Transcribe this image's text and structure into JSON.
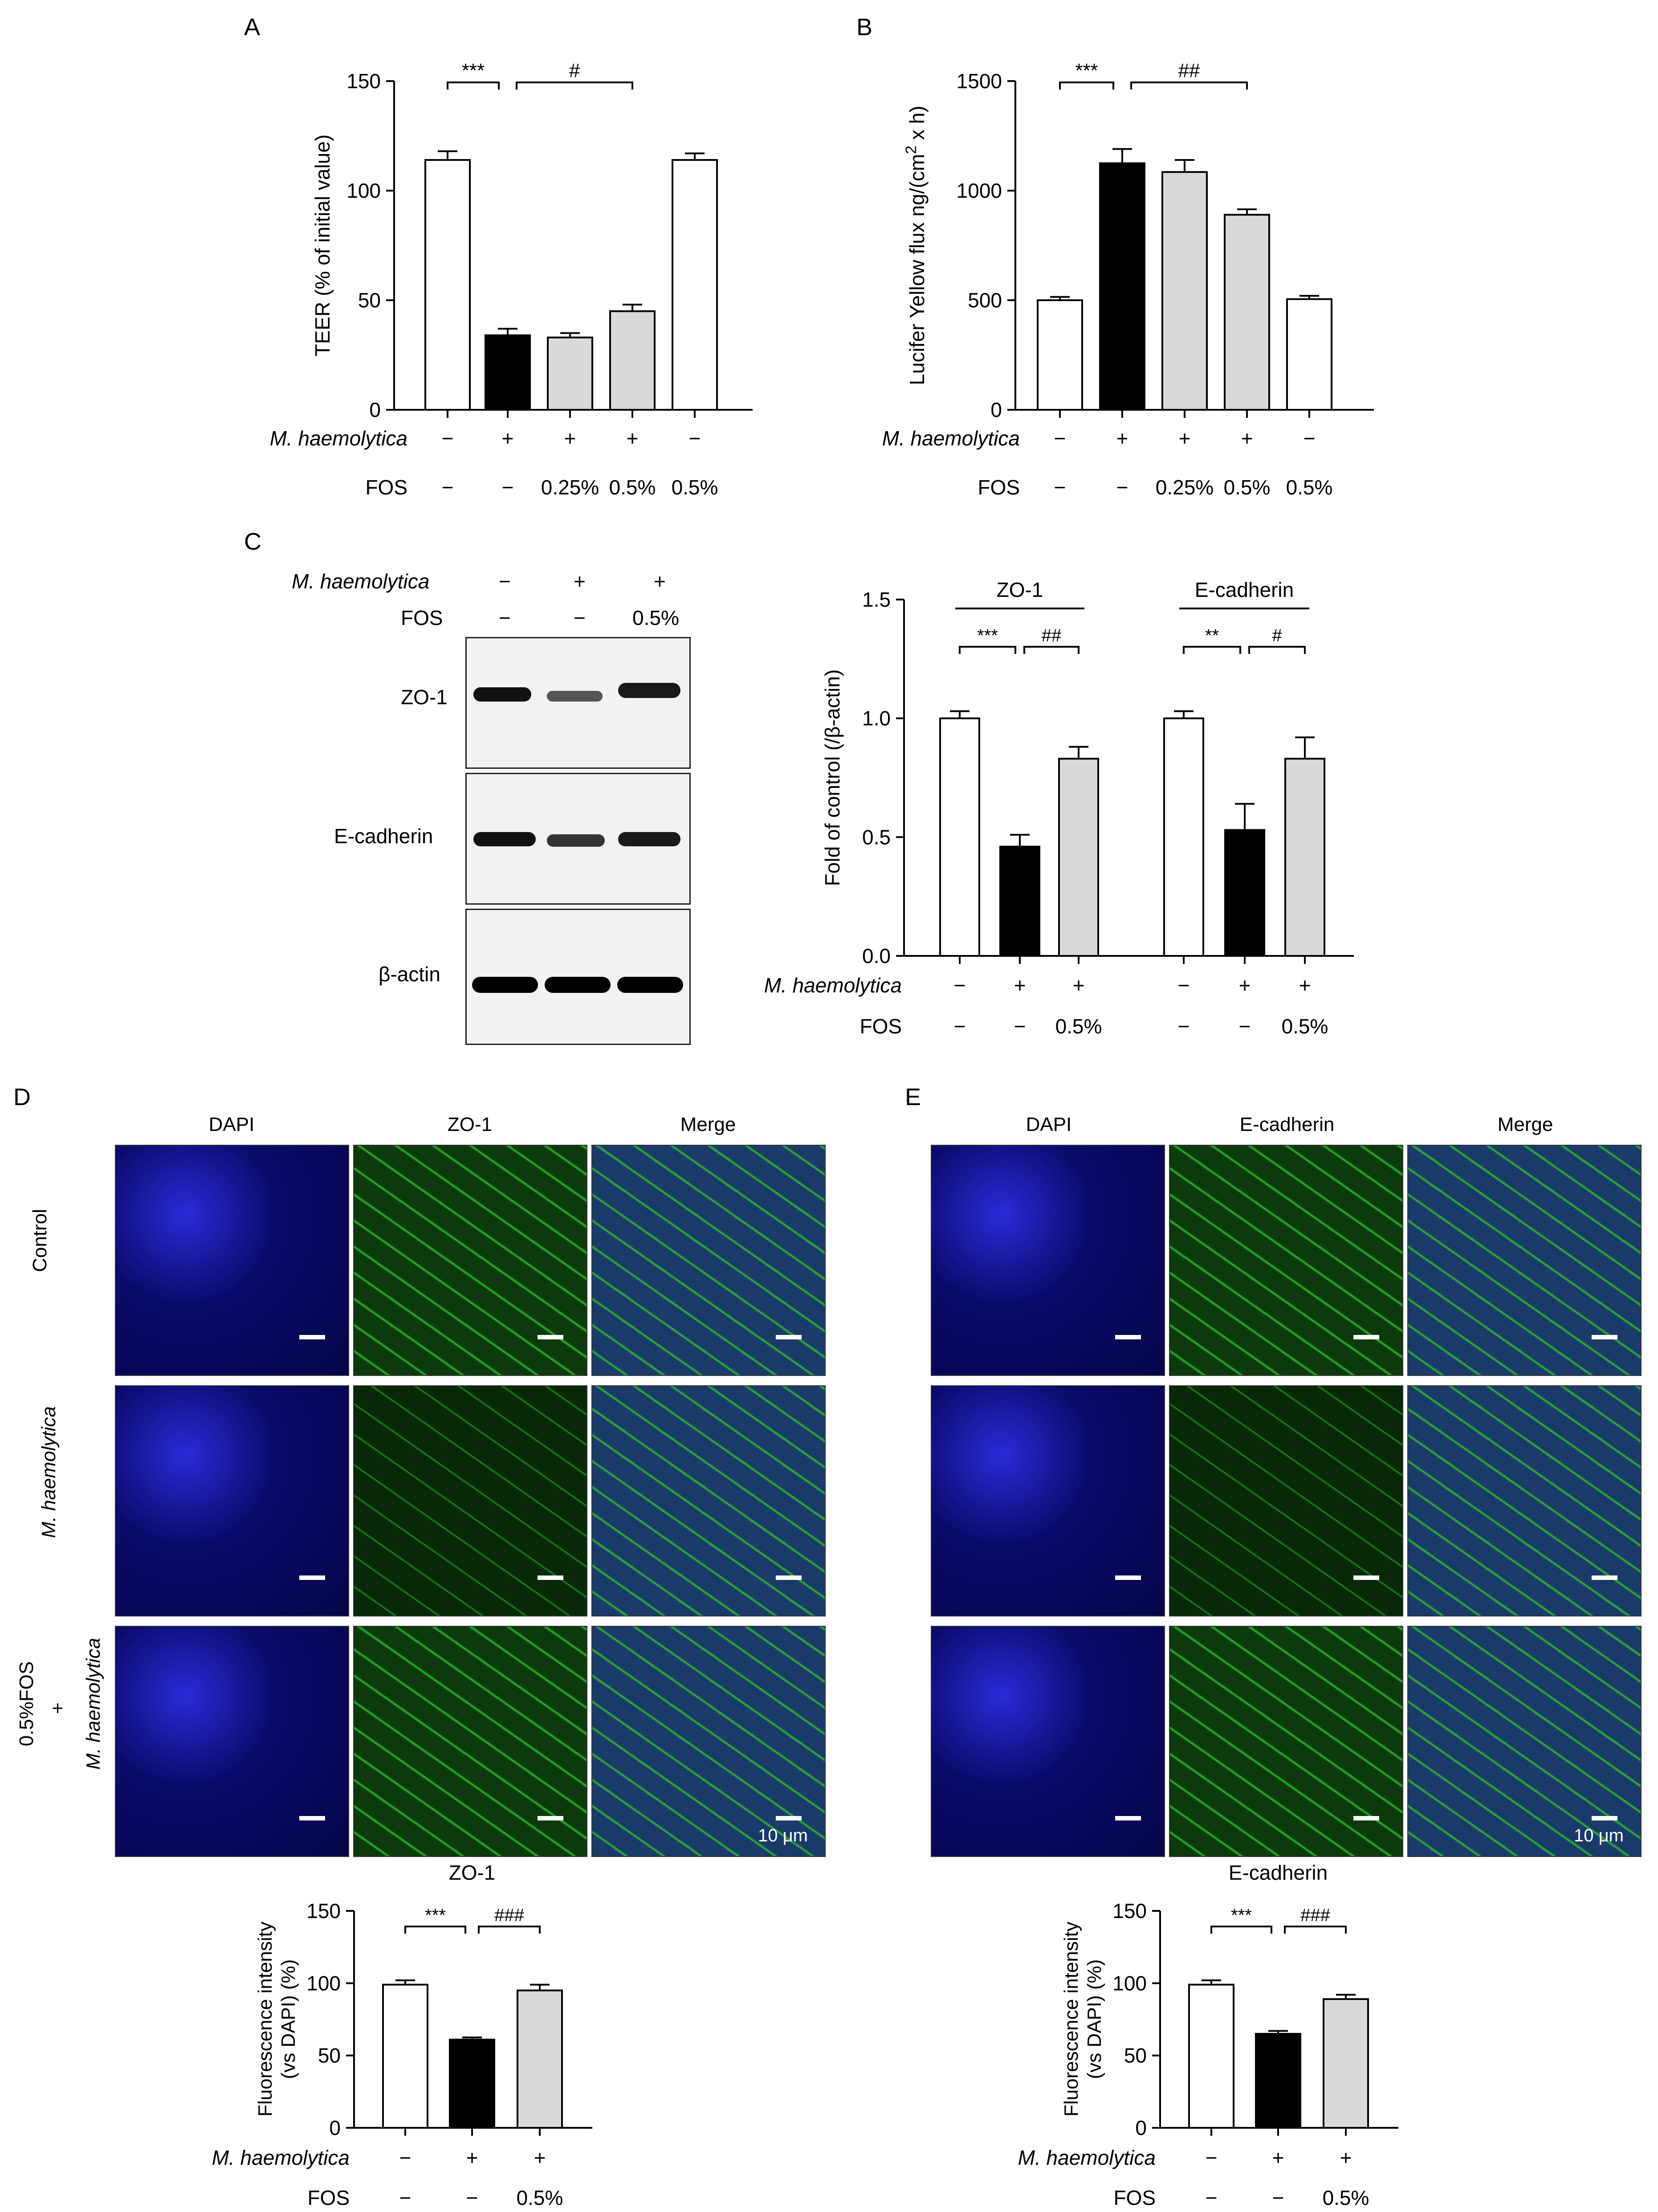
{
  "panels": {
    "a": "A",
    "b": "B",
    "c": "C",
    "d": "D",
    "e": "E"
  },
  "treatment_labels": {
    "m_haemolytica": "M. haemolytica",
    "fos": "FOS",
    "minus": "−",
    "plus": "+"
  },
  "colors": {
    "white_bar": "#ffffff",
    "black_bar": "#000000",
    "grey_bar": "#d9d9d9",
    "dapi": "#1a1aa8",
    "green": "#22b022"
  },
  "chart_data": [
    {
      "id": "A",
      "type": "bar",
      "categories": [
        "1",
        "2",
        "3",
        "4",
        "5"
      ],
      "m_haemolytica": [
        "−",
        "+",
        "+",
        "+",
        "−"
      ],
      "fos": [
        "−",
        "−",
        "0.25%",
        "0.5%",
        "0.5%"
      ],
      "values": [
        114,
        34,
        33,
        45,
        114
      ],
      "errors": [
        4,
        3,
        2,
        3,
        3
      ],
      "fills": [
        "white",
        "black",
        "grey",
        "grey",
        "white"
      ],
      "ylabel": "TEER (%  of initial value)",
      "ylim": [
        0,
        150
      ],
      "yticks": [
        0,
        50,
        100,
        150
      ],
      "brackets": [
        {
          "from": 0,
          "to": 1,
          "text": "***"
        },
        {
          "from": 1,
          "to": 3,
          "text": "#"
        }
      ]
    },
    {
      "id": "B",
      "type": "bar",
      "categories": [
        "1",
        "2",
        "3",
        "4",
        "5"
      ],
      "m_haemolytica": [
        "−",
        "+",
        "+",
        "+",
        "−"
      ],
      "fos": [
        "−",
        "−",
        "0.25%",
        "0.5%",
        "0.5%"
      ],
      "values": [
        500,
        1125,
        1085,
        890,
        505
      ],
      "errors": [
        15,
        65,
        55,
        25,
        15
      ],
      "fills": [
        "white",
        "black",
        "grey",
        "grey",
        "white"
      ],
      "ylabel": "Lucifer Yellow flux ng/(cm",
      "ylabel_sup": "2",
      "ylabel_end": " x h)",
      "ylim": [
        0,
        1500
      ],
      "yticks": [
        0,
        500,
        1000,
        1500
      ],
      "brackets": [
        {
          "from": 0,
          "to": 1,
          "text": "***"
        },
        {
          "from": 1,
          "to": 3,
          "text": "##"
        }
      ]
    },
    {
      "id": "C",
      "type": "bar",
      "groups": [
        {
          "name": "ZO-1",
          "values": [
            1.0,
            0.46,
            0.83
          ],
          "errors": [
            0.03,
            0.05,
            0.05
          ]
        },
        {
          "name": "E-cadherin",
          "values": [
            1.0,
            0.53,
            0.83
          ],
          "errors": [
            0.03,
            0.11,
            0.09
          ]
        }
      ],
      "m_haemolytica": [
        "−",
        "+",
        "+",
        "−",
        "+",
        "+"
      ],
      "fos": [
        "−",
        "−",
        "0.5%",
        "−",
        "−",
        "0.5%"
      ],
      "fills": [
        "white",
        "black",
        "grey"
      ],
      "ylabel": "Fold of control (/β-actin)",
      "ylim": [
        0,
        1.5
      ],
      "yticks": [
        "0.0",
        "0.5",
        "1.0",
        "1.5"
      ],
      "brackets": [
        {
          "from": 0,
          "to": 1,
          "text": "***"
        },
        {
          "from": 1,
          "to": 2,
          "text": "##"
        },
        {
          "from": 3,
          "to": 4,
          "text": "**"
        },
        {
          "from": 4,
          "to": 5,
          "text": "#"
        }
      ]
    },
    {
      "id": "D",
      "type": "bar",
      "title": "ZO-1",
      "categories": [
        "1",
        "2",
        "3"
      ],
      "m_haemolytica": [
        "−",
        "+",
        "+"
      ],
      "fos": [
        "−",
        "−",
        "0.5%"
      ],
      "values": [
        99,
        61,
        95
      ],
      "errors": [
        3,
        1.5,
        4
      ],
      "fills": [
        "white",
        "black",
        "grey"
      ],
      "ylabel_line1": "Fluorescence intensity",
      "ylabel_line2": "(vs DAPI) (%)",
      "ylim": [
        0,
        150
      ],
      "yticks": [
        0,
        50,
        100,
        150
      ],
      "brackets": [
        {
          "from": 0,
          "to": 1,
          "text": "***"
        },
        {
          "from": 1,
          "to": 2,
          "text": "###"
        }
      ]
    },
    {
      "id": "E",
      "type": "bar",
      "title": "E-cadherin",
      "categories": [
        "1",
        "2",
        "3"
      ],
      "m_haemolytica": [
        "−",
        "+",
        "+"
      ],
      "fos": [
        "−",
        "−",
        "0.5%"
      ],
      "values": [
        99,
        65,
        89
      ],
      "errors": [
        3,
        2,
        3
      ],
      "fills": [
        "white",
        "black",
        "grey"
      ],
      "ylabel_line1": "Fluorescence intensity",
      "ylabel_line2": "(vs DAPI) (%)",
      "ylim": [
        0,
        150
      ],
      "yticks": [
        0,
        50,
        100,
        150
      ],
      "brackets": [
        {
          "from": 0,
          "to": 1,
          "text": "***"
        },
        {
          "from": 1,
          "to": 2,
          "text": "###"
        }
      ]
    }
  ],
  "western_blot": {
    "header_m": [
      "−",
      "+",
      "+"
    ],
    "header_fos": [
      "−",
      "−",
      "0.5%"
    ],
    "rows": [
      {
        "label": "ZO-1",
        "intensity": [
          0.9,
          0.45,
          0.9
        ]
      },
      {
        "label": "E-cadherin",
        "intensity": [
          0.9,
          0.7,
          0.85
        ]
      },
      {
        "label": "β-actin",
        "intensity": [
          1.0,
          1.0,
          1.0
        ]
      }
    ]
  },
  "microscopy": {
    "d_columns": [
      "DAPI",
      "ZO-1",
      "Merge"
    ],
    "e_columns": [
      "DAPI",
      "E-cadherin",
      "Merge"
    ],
    "d_rows": [
      "Control",
      "M. haemolytica",
      "0.5%FOS",
      "+",
      "M. haemolytica"
    ],
    "scale_label": "10 μm"
  }
}
